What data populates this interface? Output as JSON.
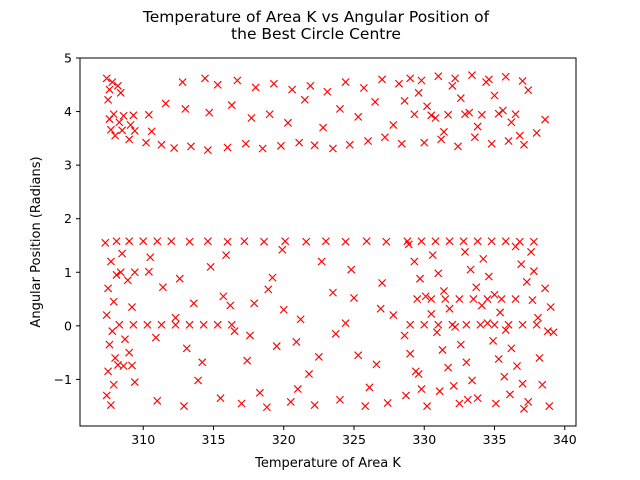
{
  "chart_data": {
    "type": "scatter",
    "title": [
      "Temperature of Area K vs Angular Position of",
      "the Best Circle Centre"
    ],
    "xlabel": "Temperature of Area K",
    "ylabel": "Angular Position (Radians)",
    "xlim": [
      305.5,
      340.8
    ],
    "ylim": [
      -1.87,
      5.0
    ],
    "xticks": [
      310,
      315,
      320,
      325,
      330,
      335,
      340
    ],
    "yticks": [
      -1,
      0,
      1,
      2,
      3,
      4,
      5
    ],
    "marker": "x",
    "color": "#ff0000",
    "grid": false,
    "legend": "none",
    "series": [
      {
        "points": [
          [
            307.4,
            4.62
          ],
          [
            307.8,
            4.55
          ],
          [
            308.2,
            4.48
          ],
          [
            307.6,
            4.41
          ],
          [
            308.4,
            4.35
          ],
          [
            307.5,
            4.22
          ],
          [
            307.9,
            3.95
          ],
          [
            308.6,
            3.92
          ],
          [
            309.3,
            3.93
          ],
          [
            310.4,
            3.94
          ],
          [
            307.6,
            3.86
          ],
          [
            308.3,
            3.8
          ],
          [
            309.1,
            3.75
          ],
          [
            307.7,
            3.66
          ],
          [
            308.5,
            3.65
          ],
          [
            309.4,
            3.64
          ],
          [
            310.6,
            3.63
          ],
          [
            308.0,
            3.55
          ],
          [
            309.0,
            3.48
          ],
          [
            310.2,
            3.42
          ],
          [
            311.3,
            3.38
          ],
          [
            312.2,
            3.32
          ],
          [
            313.4,
            3.35
          ],
          [
            314.6,
            3.28
          ],
          [
            316.0,
            3.33
          ],
          [
            317.3,
            3.4
          ],
          [
            318.5,
            3.31
          ],
          [
            319.8,
            3.36
          ],
          [
            321.1,
            3.42
          ],
          [
            322.2,
            3.37
          ],
          [
            323.5,
            3.31
          ],
          [
            324.7,
            3.38
          ],
          [
            326.0,
            3.45
          ],
          [
            327.2,
            3.52
          ],
          [
            328.4,
            3.4
          ],
          [
            312.8,
            4.55
          ],
          [
            314.4,
            4.62
          ],
          [
            315.3,
            4.5
          ],
          [
            316.7,
            4.58
          ],
          [
            318.0,
            4.45
          ],
          [
            319.3,
            4.52
          ],
          [
            320.6,
            4.41
          ],
          [
            321.9,
            4.48
          ],
          [
            323.1,
            4.37
          ],
          [
            324.4,
            4.55
          ],
          [
            325.7,
            4.44
          ],
          [
            327.0,
            4.6
          ],
          [
            328.2,
            4.52
          ],
          [
            311.6,
            4.15
          ],
          [
            313.0,
            4.05
          ],
          [
            314.7,
            3.98
          ],
          [
            316.3,
            4.12
          ],
          [
            317.7,
            3.88
          ],
          [
            319.0,
            3.95
          ],
          [
            320.3,
            3.79
          ],
          [
            321.5,
            4.22
          ],
          [
            322.8,
            3.7
          ],
          [
            324.0,
            4.05
          ],
          [
            325.3,
            3.9
          ],
          [
            326.5,
            4.18
          ],
          [
            327.8,
            3.75
          ],
          [
            329.0,
            4.62
          ],
          [
            329.6,
            4.35
          ],
          [
            330.2,
            4.1
          ],
          [
            330.8,
            3.88
          ],
          [
            331.4,
            3.62
          ],
          [
            332.0,
            4.48
          ],
          [
            332.6,
            4.25
          ],
          [
            333.2,
            3.98
          ],
          [
            333.8,
            3.72
          ],
          [
            334.4,
            4.55
          ],
          [
            335.0,
            4.3
          ],
          [
            335.6,
            4.02
          ],
          [
            336.2,
            3.8
          ],
          [
            336.8,
            3.55
          ],
          [
            337.4,
            4.4
          ],
          [
            338.0,
            3.6
          ],
          [
            338.6,
            3.85
          ],
          [
            329.3,
            3.95
          ],
          [
            330.5,
            3.93
          ],
          [
            331.7,
            3.94
          ],
          [
            332.9,
            3.95
          ],
          [
            334.1,
            3.94
          ],
          [
            335.3,
            3.96
          ],
          [
            336.5,
            3.95
          ],
          [
            330.0,
            3.42
          ],
          [
            331.2,
            3.48
          ],
          [
            332.4,
            3.35
          ],
          [
            333.6,
            3.52
          ],
          [
            334.8,
            3.4
          ],
          [
            336.0,
            3.45
          ],
          [
            337.1,
            3.38
          ],
          [
            329.8,
            4.58
          ],
          [
            331.0,
            4.66
          ],
          [
            332.2,
            4.62
          ],
          [
            333.4,
            4.68
          ],
          [
            334.6,
            4.6
          ],
          [
            335.8,
            4.65
          ],
          [
            337.0,
            4.57
          ],
          [
            328.6,
            4.2
          ],
          [
            307.3,
            1.55
          ],
          [
            307.7,
            1.2
          ],
          [
            308.1,
            0.95
          ],
          [
            307.5,
            0.7
          ],
          [
            307.9,
            0.45
          ],
          [
            307.4,
            0.2
          ],
          [
            307.8,
            -0.1
          ],
          [
            307.6,
            -0.35
          ],
          [
            308.0,
            -0.6
          ],
          [
            307.5,
            -0.85
          ],
          [
            307.9,
            -1.1
          ],
          [
            307.4,
            -1.3
          ],
          [
            307.7,
            -1.48
          ],
          [
            308.5,
            1.35
          ],
          [
            308.9,
            0.85
          ],
          [
            309.2,
            0.35
          ],
          [
            308.7,
            -0.25
          ],
          [
            309.0,
            -0.5
          ],
          [
            308.6,
            -0.75
          ],
          [
            309.4,
            -1.05
          ],
          [
            308.1,
            1.58
          ],
          [
            309.0,
            1.58
          ],
          [
            310.0,
            1.58
          ],
          [
            311.0,
            1.58
          ],
          [
            312.0,
            1.58
          ],
          [
            313.3,
            1.57
          ],
          [
            314.6,
            1.58
          ],
          [
            316.0,
            1.57
          ],
          [
            317.2,
            1.58
          ],
          [
            318.6,
            1.57
          ],
          [
            320.1,
            1.58
          ],
          [
            321.6,
            1.57
          ],
          [
            323.0,
            1.58
          ],
          [
            324.4,
            1.57
          ],
          [
            325.9,
            1.58
          ],
          [
            327.3,
            1.57
          ],
          [
            308.3,
            0.02
          ],
          [
            309.3,
            0.02
          ],
          [
            310.3,
            0.02
          ],
          [
            311.3,
            0.02
          ],
          [
            312.3,
            0.02
          ],
          [
            313.3,
            0.02
          ],
          [
            314.3,
            0.02
          ],
          [
            315.3,
            0.02
          ],
          [
            316.3,
            0.02
          ],
          [
            308.4,
            1.0
          ],
          [
            309.4,
            1.0
          ],
          [
            310.4,
            1.01
          ],
          [
            308.2,
            -0.73
          ],
          [
            309.2,
            -0.74
          ],
          [
            310.5,
            1.28
          ],
          [
            311.4,
            0.72
          ],
          [
            312.3,
            0.15
          ],
          [
            313.1,
            -0.42
          ],
          [
            313.9,
            -1.02
          ],
          [
            314.8,
            1.1
          ],
          [
            315.7,
            0.55
          ],
          [
            316.5,
            -0.1
          ],
          [
            317.4,
            -0.65
          ],
          [
            318.3,
            -1.25
          ],
          [
            319.2,
            0.9
          ],
          [
            320.0,
            0.3
          ],
          [
            320.9,
            -0.3
          ],
          [
            321.8,
            -0.9
          ],
          [
            322.7,
            1.2
          ],
          [
            323.5,
            0.62
          ],
          [
            324.4,
            0.05
          ],
          [
            325.3,
            -0.55
          ],
          [
            326.1,
            -1.15
          ],
          [
            327.0,
            0.8
          ],
          [
            327.8,
            0.2
          ],
          [
            311.0,
            -1.4
          ],
          [
            312.9,
            -1.5
          ],
          [
            315.5,
            -1.35
          ],
          [
            317.0,
            -1.45
          ],
          [
            318.8,
            -1.52
          ],
          [
            320.5,
            -1.42
          ],
          [
            322.2,
            -1.48
          ],
          [
            324.0,
            -1.38
          ],
          [
            325.8,
            -1.5
          ],
          [
            327.4,
            -1.44
          ],
          [
            316.2,
            0.38
          ],
          [
            317.9,
            0.42
          ],
          [
            319.5,
            -0.38
          ],
          [
            321.2,
            0.12
          ],
          [
            323.7,
            -0.15
          ],
          [
            325.0,
            0.52
          ],
          [
            326.6,
            -0.72
          ],
          [
            310.9,
            -0.22
          ],
          [
            312.6,
            0.88
          ],
          [
            314.2,
            -0.68
          ],
          [
            315.9,
            1.32
          ],
          [
            318.9,
            0.68
          ],
          [
            322.5,
            -0.58
          ],
          [
            326.9,
            0.32
          ],
          [
            319.9,
            1.42
          ],
          [
            321.0,
            -1.18
          ],
          [
            313.6,
            0.42
          ],
          [
            317.6,
            -0.18
          ],
          [
            324.8,
            1.05
          ],
          [
            328.9,
            1.52
          ],
          [
            329.3,
            1.2
          ],
          [
            329.7,
            0.88
          ],
          [
            330.1,
            0.55
          ],
          [
            330.5,
            0.22
          ],
          [
            330.9,
            -0.12
          ],
          [
            331.3,
            -0.45
          ],
          [
            331.7,
            -0.78
          ],
          [
            332.1,
            -1.12
          ],
          [
            332.5,
            -1.45
          ],
          [
            332.9,
            1.38
          ],
          [
            333.3,
            1.05
          ],
          [
            333.7,
            0.72
          ],
          [
            334.1,
            0.38
          ],
          [
            334.5,
            0.05
          ],
          [
            334.9,
            -0.28
          ],
          [
            335.3,
            -0.62
          ],
          [
            335.7,
            -0.95
          ],
          [
            336.1,
            -1.28
          ],
          [
            336.5,
            1.48
          ],
          [
            336.9,
            1.15
          ],
          [
            337.3,
            0.82
          ],
          [
            337.7,
            0.48
          ],
          [
            338.1,
            0.15
          ],
          [
            328.6,
            -0.18
          ],
          [
            329.0,
            -0.52
          ],
          [
            329.4,
            -0.85
          ],
          [
            329.8,
            -1.18
          ],
          [
            330.2,
            -1.5
          ],
          [
            330.6,
            1.32
          ],
          [
            331.0,
            0.98
          ],
          [
            331.4,
            0.65
          ],
          [
            331.8,
            0.32
          ],
          [
            332.2,
            -0.02
          ],
          [
            332.6,
            -0.35
          ],
          [
            333.0,
            -0.68
          ],
          [
            333.4,
            -1.02
          ],
          [
            333.8,
            -1.35
          ],
          [
            334.2,
            1.25
          ],
          [
            334.6,
            0.92
          ],
          [
            335.0,
            0.58
          ],
          [
            335.4,
            0.25
          ],
          [
            335.8,
            -0.08
          ],
          [
            336.2,
            -0.42
          ],
          [
            336.6,
            -0.75
          ],
          [
            337.0,
            -1.08
          ],
          [
            337.4,
            -1.42
          ],
          [
            337.8,
            1.02
          ],
          [
            338.2,
            -0.6
          ],
          [
            338.6,
            0.7
          ],
          [
            328.8,
            1.58
          ],
          [
            329.8,
            1.58
          ],
          [
            330.8,
            1.58
          ],
          [
            331.8,
            1.58
          ],
          [
            332.8,
            1.58
          ],
          [
            333.8,
            1.58
          ],
          [
            334.8,
            1.58
          ],
          [
            335.8,
            1.58
          ],
          [
            336.8,
            1.57
          ],
          [
            337.8,
            1.57
          ],
          [
            329.0,
            0.02
          ],
          [
            330.0,
            0.02
          ],
          [
            331.0,
            0.02
          ],
          [
            332.0,
            0.02
          ],
          [
            333.0,
            0.02
          ],
          [
            334.0,
            0.02
          ],
          [
            335.0,
            0.02
          ],
          [
            336.0,
            0.02
          ],
          [
            337.0,
            0.02
          ],
          [
            338.0,
            0.02
          ],
          [
            329.5,
            0.5
          ],
          [
            330.5,
            0.5
          ],
          [
            331.5,
            0.5
          ],
          [
            332.5,
            0.5
          ],
          [
            333.5,
            0.5
          ],
          [
            334.5,
            0.5
          ],
          [
            335.5,
            0.5
          ],
          [
            336.5,
            0.5
          ],
          [
            329.6,
            -0.9
          ],
          [
            331.1,
            -1.22
          ],
          [
            333.1,
            -1.38
          ],
          [
            335.1,
            -1.45
          ],
          [
            337.1,
            -1.55
          ],
          [
            328.7,
            -1.3
          ],
          [
            338.8,
            -0.1
          ],
          [
            339.0,
            0.35
          ],
          [
            338.4,
            -1.1
          ],
          [
            337.6,
            1.38
          ],
          [
            338.9,
            -1.5
          ],
          [
            339.2,
            -0.12
          ]
        ]
      }
    ]
  }
}
